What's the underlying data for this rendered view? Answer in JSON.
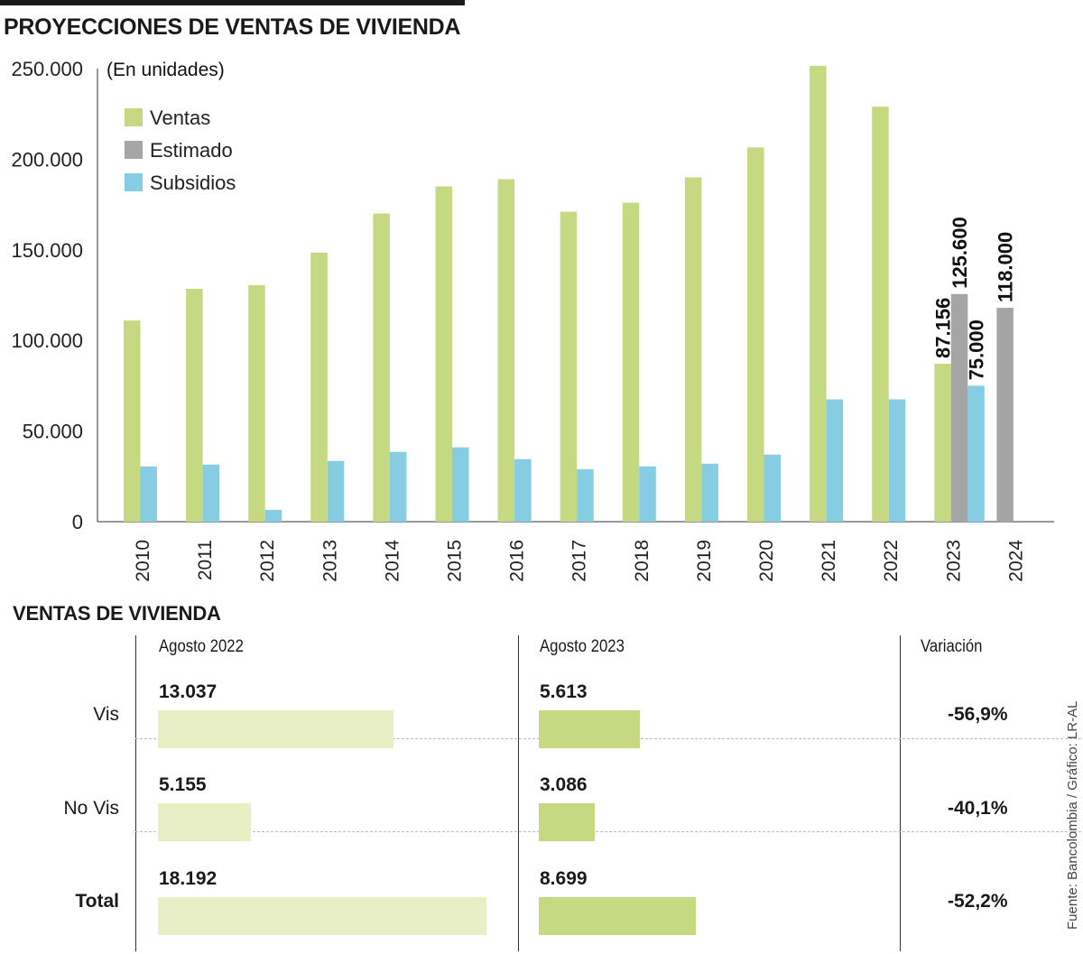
{
  "title": "PROYECCIONES DE VENTAS DE VIVIENDA",
  "colors": {
    "ventas": "#c5d983",
    "estimado": "#a5a5a5",
    "subsidios": "#86cde3",
    "bar2022": "#e9efc5",
    "bar2023": "#c5d983"
  },
  "chart_data": {
    "type": "bar",
    "subtitle": "(En unidades)",
    "categories": [
      "2010",
      "2011",
      "2012",
      "2013",
      "2014",
      "2015",
      "2016",
      "2017",
      "2018",
      "2019",
      "2020",
      "2021",
      "2022",
      "2023",
      "2024"
    ],
    "series": [
      {
        "name": "Ventas",
        "values": [
          111000,
          128500,
          130500,
          148500,
          170000,
          185000,
          189000,
          171000,
          176000,
          190000,
          206500,
          251500,
          229000,
          87156,
          null
        ]
      },
      {
        "name": "Estimado",
        "values": [
          null,
          null,
          null,
          null,
          null,
          null,
          null,
          null,
          null,
          null,
          null,
          null,
          null,
          125600,
          118000
        ]
      },
      {
        "name": "Subsidios",
        "values": [
          30500,
          31500,
          6500,
          33500,
          38500,
          41000,
          34500,
          29000,
          30500,
          32000,
          37000,
          67500,
          67500,
          75000,
          null
        ]
      }
    ],
    "data_labels": [
      {
        "category": "2023",
        "series": "Ventas",
        "text": "87.156"
      },
      {
        "category": "2023",
        "series": "Estimado",
        "text": "125.600"
      },
      {
        "category": "2023",
        "series": "Subsidios",
        "text": "75.000"
      },
      {
        "category": "2024",
        "series": "Estimado",
        "text": "118.000"
      }
    ],
    "y_ticks": [
      "0",
      "50.000",
      "100.000",
      "150.000",
      "200.000",
      "250.000"
    ],
    "ylim": [
      0,
      250000
    ],
    "legend_placement": "top-left",
    "grid": false
  },
  "table": {
    "title": "VENTAS DE VIVIENDA",
    "columns": [
      "Agosto 2022",
      "Agosto 2023",
      "Variación"
    ],
    "rows": [
      {
        "label": "Vis",
        "v2022": 13037,
        "v2022_text": "13.037",
        "v2023": 5613,
        "v2023_text": "5.613",
        "variation": "-56,9%",
        "bold": false
      },
      {
        "label": "No Vis",
        "v2022": 5155,
        "v2022_text": "5.155",
        "v2023": 3086,
        "v2023_text": "3.086",
        "variation": "-40,1%",
        "bold": false
      },
      {
        "label": "Total",
        "v2022": 18192,
        "v2022_text": "18.192",
        "v2023": 8699,
        "v2023_text": "8.699",
        "variation": "-52,2%",
        "bold": true
      }
    ]
  },
  "source": "Fuente: Bancolombia / Gráfico: LR-AL"
}
